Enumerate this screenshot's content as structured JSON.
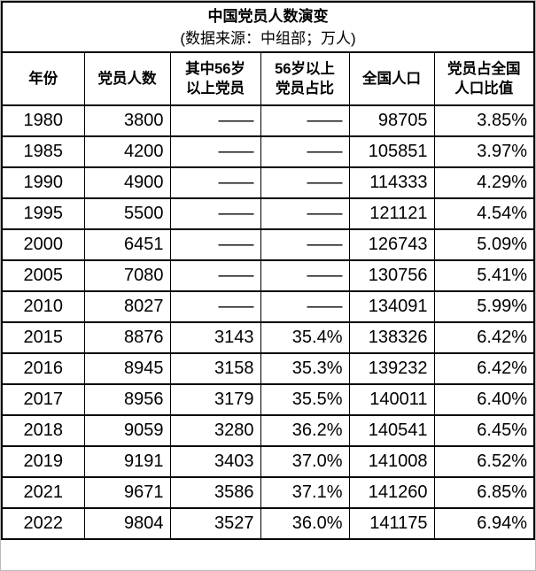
{
  "title": "中国党员人数演变",
  "subtitle": "(数据来源：中组部；万人)",
  "header": {
    "columns": [
      {
        "lines": [
          "年份"
        ]
      },
      {
        "lines": [
          "党员人数"
        ]
      },
      {
        "lines": [
          "其中56岁",
          "以上党员"
        ]
      },
      {
        "lines": [
          "56岁以上",
          "党员占比"
        ]
      },
      {
        "lines": [
          "全国人口"
        ]
      },
      {
        "lines": [
          "党员占全国",
          "人口比值"
        ]
      }
    ]
  },
  "colors": {
    "ratio_column_highlight": "#FFFF00",
    "share_column_highlight": "#FFFFA0",
    "grid_line": "#000000",
    "canvas_frame": "#B9B9B9"
  },
  "chart_data": {
    "type": "table",
    "title": "中国党员人数演变",
    "subtitle": "(数据来源：中组部；万人)",
    "columns": [
      "年份",
      "党员人数",
      "其中56岁以上党员",
      "56岁以上党员占比",
      "全国人口",
      "党员占全国人口比值"
    ],
    "rows": [
      [
        "1980",
        "3800",
        "——",
        "——",
        "98705",
        "3.85%"
      ],
      [
        "1985",
        "4200",
        "——",
        "——",
        "105851",
        "3.97%"
      ],
      [
        "1990",
        "4900",
        "——",
        "——",
        "114333",
        "4.29%"
      ],
      [
        "1995",
        "5500",
        "——",
        "——",
        "121121",
        "4.54%"
      ],
      [
        "2000",
        "6451",
        "——",
        "——",
        "126743",
        "5.09%"
      ],
      [
        "2005",
        "7080",
        "——",
        "——",
        "130756",
        "5.41%"
      ],
      [
        "2010",
        "8027",
        "——",
        "——",
        "134091",
        "5.99%"
      ],
      [
        "2015",
        "8876",
        "3143",
        "35.4%",
        "138326",
        "6.42%"
      ],
      [
        "2016",
        "8945",
        "3158",
        "35.3%",
        "139232",
        "6.42%"
      ],
      [
        "2017",
        "8956",
        "3179",
        "35.5%",
        "140011",
        "6.40%"
      ],
      [
        "2018",
        "9059",
        "3280",
        "36.2%",
        "140541",
        "6.45%"
      ],
      [
        "2019",
        "9191",
        "3403",
        "37.0%",
        "141008",
        "6.52%"
      ],
      [
        "2021",
        "9671",
        "3586",
        "37.1%",
        "141260",
        "6.85%"
      ],
      [
        "2022",
        "9804",
        "3527",
        "36.0%",
        "141175",
        "6.94%"
      ]
    ]
  }
}
